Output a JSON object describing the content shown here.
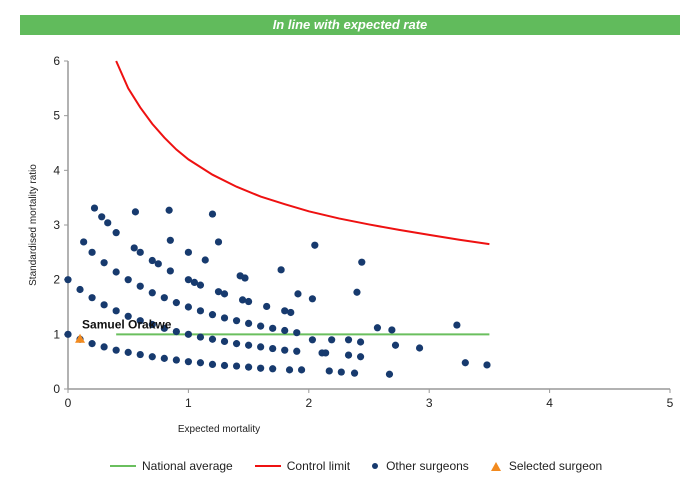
{
  "banner": {
    "text": "In line with expected rate",
    "color": "#61bb5c"
  },
  "chart_data": {
    "type": "scatter",
    "xlabel": "Expected mortality",
    "ylabel": "Standardised mortality ratio",
    "xlim": [
      0,
      5
    ],
    "ylim": [
      0,
      6
    ],
    "xticks": [
      "0",
      "1",
      "2",
      "3",
      "4",
      "5"
    ],
    "yticks": [
      "0",
      "1",
      "2",
      "3",
      "4",
      "5",
      "6"
    ],
    "grid": false,
    "legend_position": "bottom",
    "national_average": {
      "name": "National average",
      "color": "#6abf5e",
      "y": 1,
      "x_range": [
        0.4,
        3.5
      ]
    },
    "control_limit": {
      "name": "Control limit",
      "color": "#ee1111",
      "points": [
        [
          0.4,
          6.0
        ],
        [
          0.5,
          5.5
        ],
        [
          0.6,
          5.15
        ],
        [
          0.7,
          4.85
        ],
        [
          0.8,
          4.6
        ],
        [
          0.9,
          4.38
        ],
        [
          1.0,
          4.2
        ],
        [
          1.2,
          3.92
        ],
        [
          1.4,
          3.7
        ],
        [
          1.6,
          3.52
        ],
        [
          1.8,
          3.38
        ],
        [
          2.0,
          3.25
        ],
        [
          2.25,
          3.12
        ],
        [
          2.5,
          3.01
        ],
        [
          2.75,
          2.91
        ],
        [
          3.0,
          2.82
        ],
        [
          3.25,
          2.73
        ],
        [
          3.5,
          2.65
        ]
      ]
    },
    "other_surgeons": {
      "name": "Other surgeons",
      "color": "#173a6e",
      "points": [
        [
          0,
          1.0
        ],
        [
          0.1,
          0.91
        ],
        [
          0.2,
          0.83
        ],
        [
          0.3,
          0.77
        ],
        [
          0.4,
          0.71
        ],
        [
          0.5,
          0.67
        ],
        [
          0.6,
          0.63
        ],
        [
          0.7,
          0.59
        ],
        [
          0.8,
          0.56
        ],
        [
          0.9,
          0.53
        ],
        [
          1.0,
          0.5
        ],
        [
          1.1,
          0.48
        ],
        [
          1.2,
          0.45
        ],
        [
          1.3,
          0.43
        ],
        [
          1.4,
          0.42
        ],
        [
          1.5,
          0.4
        ],
        [
          1.6,
          0.38
        ],
        [
          1.7,
          0.37
        ],
        [
          0,
          2.0
        ],
        [
          0.1,
          1.82
        ],
        [
          0.2,
          1.67
        ],
        [
          0.3,
          1.54
        ],
        [
          0.4,
          1.43
        ],
        [
          0.5,
          1.33
        ],
        [
          0.6,
          1.25
        ],
        [
          0.7,
          1.18
        ],
        [
          0.8,
          1.11
        ],
        [
          0.9,
          1.05
        ],
        [
          1.0,
          1.0
        ],
        [
          1.1,
          0.95
        ],
        [
          1.2,
          0.91
        ],
        [
          1.3,
          0.87
        ],
        [
          1.4,
          0.83
        ],
        [
          1.5,
          0.8
        ],
        [
          1.6,
          0.77
        ],
        [
          1.7,
          0.74
        ],
        [
          1.8,
          0.71
        ],
        [
          1.9,
          0.69
        ],
        [
          0.2,
          2.5
        ],
        [
          0.3,
          2.31
        ],
        [
          0.4,
          2.14
        ],
        [
          0.5,
          2.0
        ],
        [
          0.6,
          1.88
        ],
        [
          0.7,
          1.76
        ],
        [
          0.8,
          1.67
        ],
        [
          0.9,
          1.58
        ],
        [
          1.0,
          1.5
        ],
        [
          1.1,
          1.43
        ],
        [
          1.2,
          1.36
        ],
        [
          1.3,
          1.3
        ],
        [
          1.4,
          1.25
        ],
        [
          1.5,
          1.2
        ],
        [
          1.6,
          1.15
        ],
        [
          1.7,
          1.11
        ],
        [
          1.8,
          1.07
        ],
        [
          1.9,
          1.03
        ],
        [
          0.4,
          2.86
        ],
        [
          0.55,
          2.58
        ],
        [
          0.6,
          2.5
        ],
        [
          0.7,
          2.35
        ],
        [
          0.75,
          2.29
        ],
        [
          0.85,
          2.16
        ],
        [
          1.0,
          2.0
        ],
        [
          1.05,
          1.95
        ],
        [
          1.1,
          1.9
        ],
        [
          1.25,
          1.78
        ],
        [
          1.3,
          1.74
        ],
        [
          1.45,
          1.63
        ],
        [
          1.5,
          1.6
        ],
        [
          1.65,
          1.51
        ],
        [
          1.8,
          1.43
        ],
        [
          1.85,
          1.4
        ],
        [
          0.22,
          3.31
        ],
        [
          0.28,
          3.15
        ],
        [
          0.33,
          3.04
        ],
        [
          0.56,
          3.24
        ],
        [
          0.84,
          3.27
        ],
        [
          1.2,
          3.2
        ],
        [
          0.13,
          2.69
        ],
        [
          0.85,
          2.72
        ],
        [
          1.25,
          2.69
        ],
        [
          1.0,
          2.5
        ],
        [
          1.14,
          2.36
        ],
        [
          1.43,
          2.07
        ],
        [
          1.47,
          2.03
        ],
        [
          1.77,
          2.18
        ],
        [
          2.05,
          2.63
        ],
        [
          2.44,
          2.32
        ],
        [
          1.91,
          1.74
        ],
        [
          2.03,
          1.65
        ],
        [
          2.4,
          1.77
        ],
        [
          2.57,
          1.12
        ],
        [
          2.69,
          1.08
        ],
        [
          3.23,
          1.17
        ],
        [
          2.72,
          0.8
        ],
        [
          2.92,
          0.75
        ],
        [
          3.3,
          0.48
        ],
        [
          3.48,
          0.44
        ],
        [
          2.11,
          0.66
        ],
        [
          2.14,
          0.66
        ],
        [
          2.33,
          0.62
        ],
        [
          2.43,
          0.59
        ],
        [
          2.03,
          0.9
        ],
        [
          2.19,
          0.9
        ],
        [
          2.33,
          0.9
        ],
        [
          2.43,
          0.86
        ],
        [
          2.17,
          0.33
        ],
        [
          2.27,
          0.31
        ],
        [
          2.38,
          0.29
        ],
        [
          2.67,
          0.27
        ],
        [
          1.84,
          0.35
        ],
        [
          1.94,
          0.35
        ]
      ]
    },
    "selected_surgeon": {
      "name": "Selected surgeon",
      "color": "#f28a1e",
      "label": "Samuel Orakwe",
      "point": [
        0.1,
        0.92
      ]
    }
  }
}
